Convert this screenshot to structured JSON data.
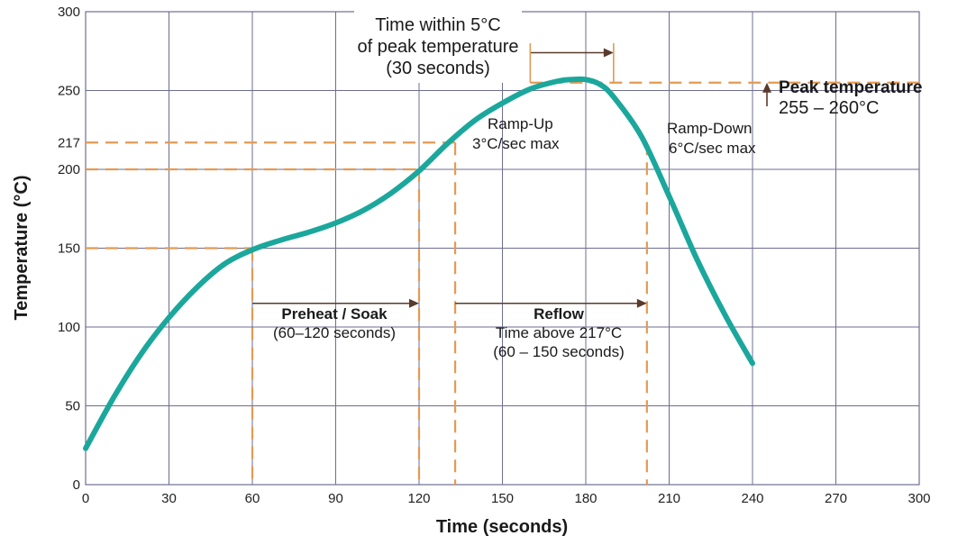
{
  "chart_data": {
    "type": "line",
    "xlabel": "Time (seconds)",
    "ylabel": "Temperature (°C)",
    "xlim": [
      0,
      300
    ],
    "ylim": [
      0,
      300
    ],
    "x_ticks": [
      0,
      30,
      60,
      90,
      120,
      150,
      180,
      210,
      240,
      270,
      300
    ],
    "y_ticks": [
      0,
      50,
      100,
      150,
      200,
      217,
      250,
      300
    ],
    "grid": true,
    "colors": {
      "curve": "#1ba79c",
      "guides": "#e49a52",
      "grid": "#6d6d93",
      "arrows": "#5a3a2a"
    },
    "series": [
      {
        "x": [
          0,
          10,
          20,
          30,
          40,
          50,
          60,
          70,
          80,
          90,
          100,
          110,
          120,
          130,
          140,
          150,
          160,
          170,
          175,
          180,
          185,
          190,
          200,
          210,
          220,
          230,
          240
        ],
        "y": [
          23,
          55,
          83,
          106,
          125,
          140,
          149,
          155,
          160,
          166,
          174,
          185,
          199,
          216,
          231,
          242,
          251,
          256,
          257,
          257,
          254,
          246,
          221,
          183,
          143,
          108,
          77
        ]
      }
    ],
    "reference_lines": [
      {
        "y": 150,
        "x_end": 60
      },
      {
        "y": 200,
        "x_end": 120
      },
      {
        "y": 217,
        "x_end": 133
      },
      {
        "y": 255,
        "x_start": 160,
        "x_end": 300
      },
      {
        "x": 60,
        "y_end": 150
      },
      {
        "x": 120,
        "y_end": 200
      },
      {
        "x": 133,
        "y_end": 217
      },
      {
        "x": 202,
        "y_end": 217
      }
    ],
    "annotations": {
      "preheat": {
        "title": "Preheat / Soak",
        "detail": "(60–120 seconds)"
      },
      "reflow": {
        "title": "Reflow",
        "detail1": "Time above 217°C",
        "detail2": "(60 – 150 seconds)"
      },
      "ramp_up": {
        "line1": "Ramp-Up",
        "line2": "3°C/sec max"
      },
      "ramp_down": {
        "line1": "Ramp-Down",
        "line2": "6°C/sec max"
      },
      "peak": {
        "title": "Peak temperature",
        "detail": "255 – 260°C"
      },
      "within5": {
        "line1": "Time within 5°C",
        "line2": "of peak temperature",
        "line3": "(30 seconds)"
      }
    }
  }
}
